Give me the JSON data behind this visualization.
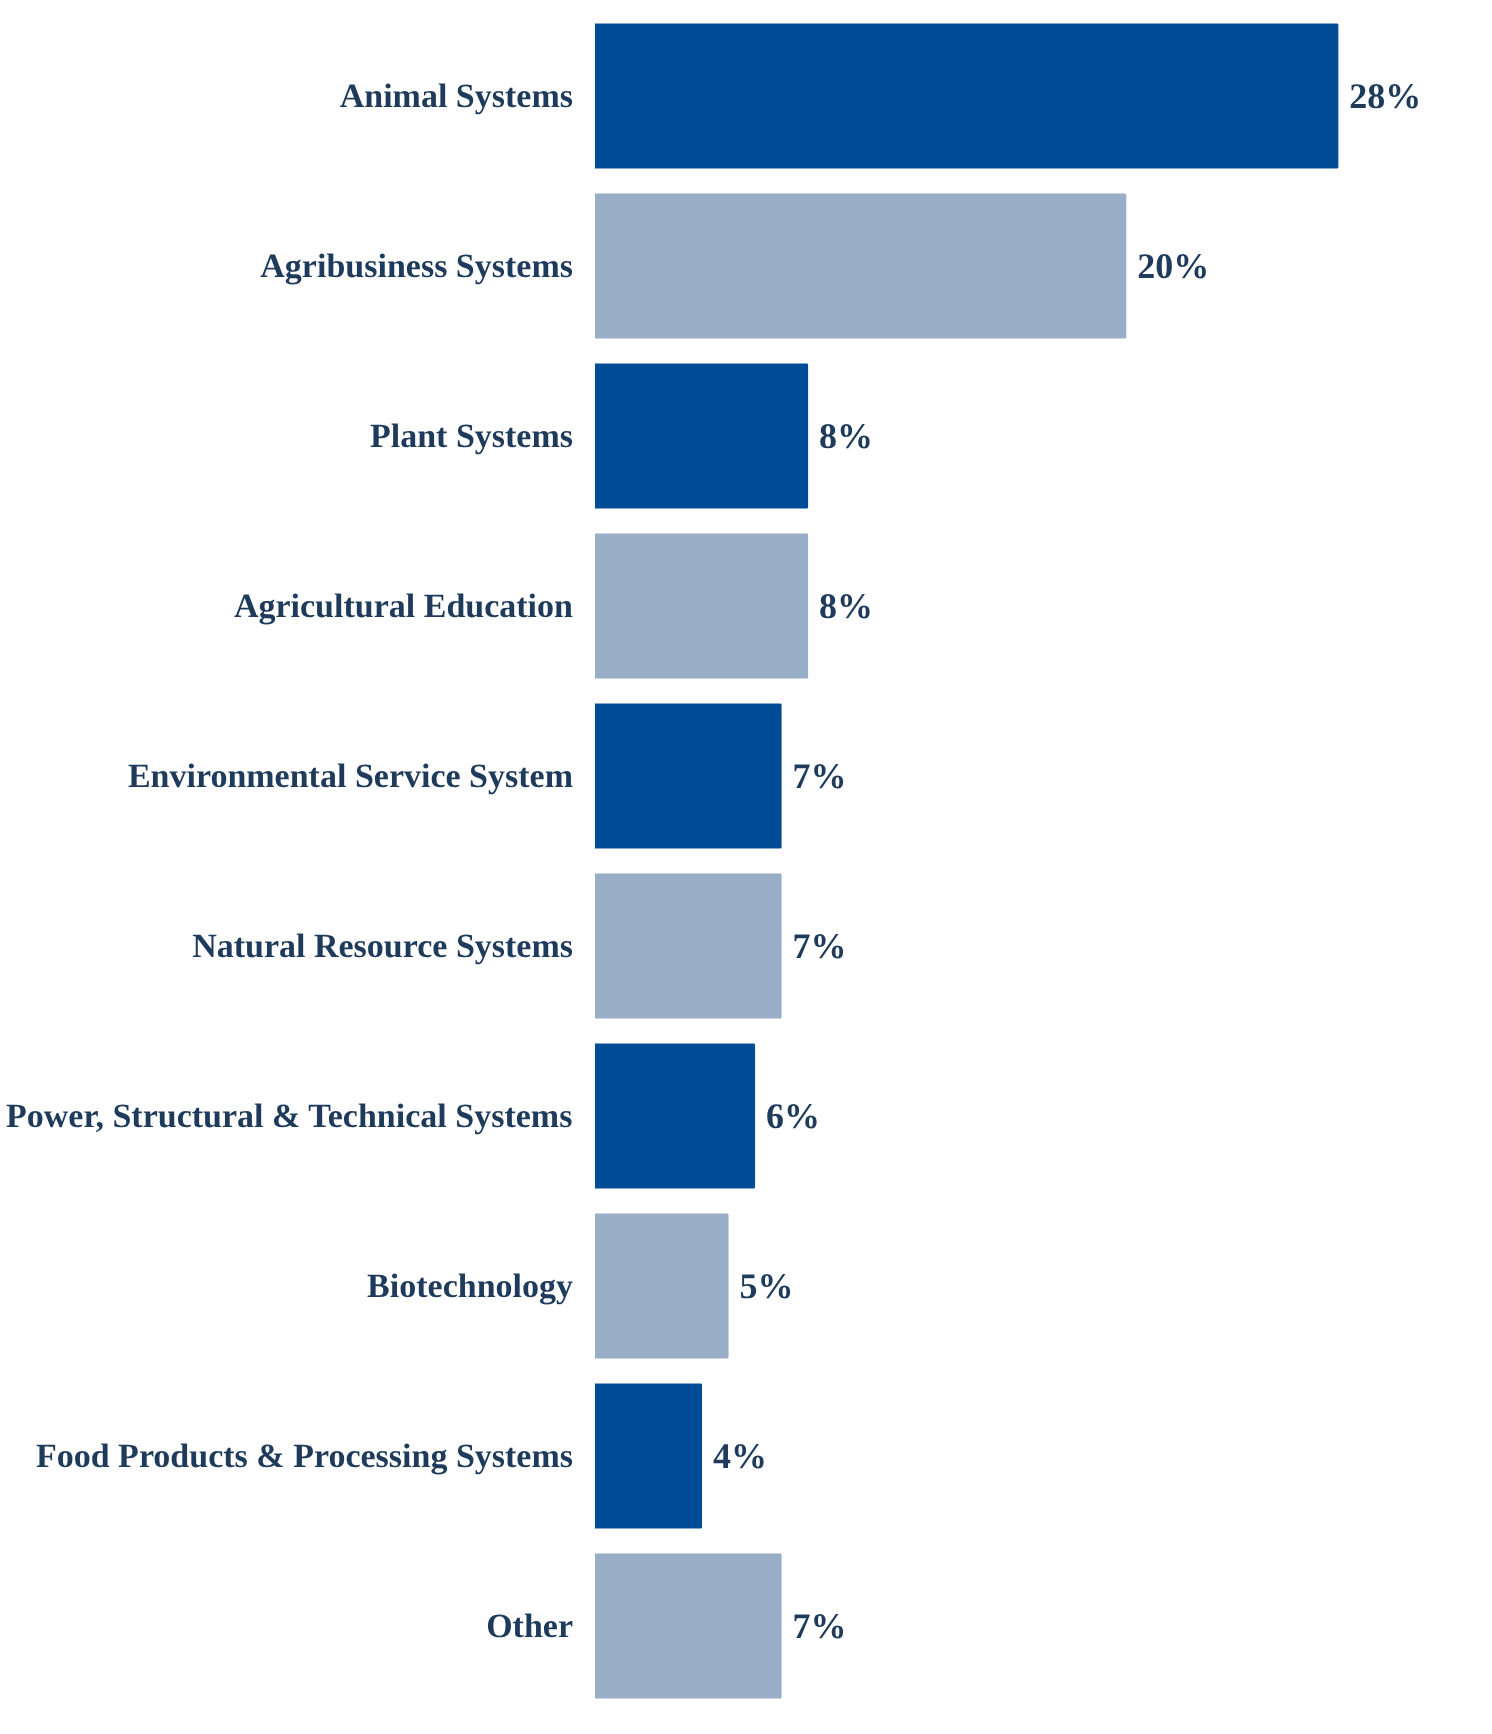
{
  "chart_data": {
    "type": "bar",
    "orientation": "horizontal",
    "categories": [
      "Animal Systems",
      "Agribusiness Systems",
      "Plant Systems",
      "Agricultural Education",
      "Environmental Service System",
      "Natural Resource Systems",
      "Power, Structural & Technical Systems",
      "Biotechnology",
      "Food Products & Processing Systems",
      "Other"
    ],
    "values": [
      28,
      20,
      8,
      8,
      7,
      7,
      6,
      5,
      4,
      7
    ],
    "value_labels": [
      "28%",
      "20%",
      "8%",
      "8%",
      "7%",
      "7%",
      "6%",
      "5%",
      "4%",
      "7%"
    ],
    "colors": [
      "#004c97",
      "#97aec6",
      "#004c97",
      "#97aec6",
      "#004c97",
      "#97aec6",
      "#004c97",
      "#97aec6",
      "#004c97",
      "#97aec6"
    ],
    "tick_labels": "y",
    "grid": false
  }
}
